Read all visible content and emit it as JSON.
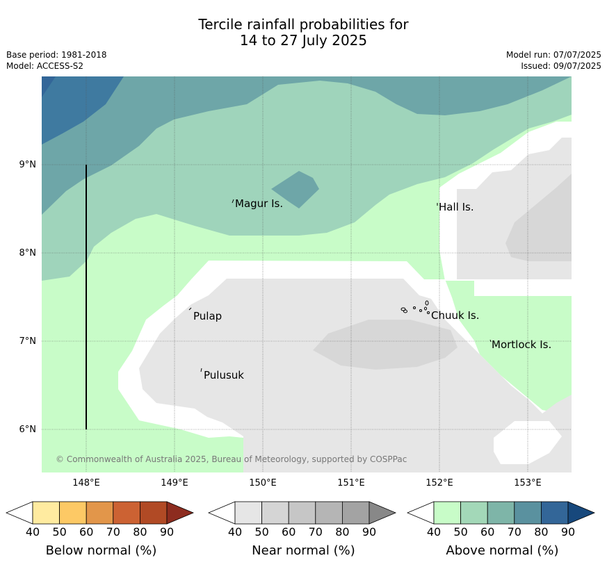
{
  "title": {
    "line1": "Tercile rainfall probabilities for",
    "line2": "14 to 27 July 2025"
  },
  "meta_left": {
    "base_period": "Base period: 1981-2018",
    "model": "Model: ACCESS-S2"
  },
  "meta_right": {
    "model_run": "Model run: 07/07/2025",
    "issued": "Issued: 09/07/2025"
  },
  "map": {
    "lon_labels": [
      "148°E",
      "149°E",
      "150°E",
      "151°E",
      "152°E",
      "153°E"
    ],
    "lat_labels": [
      "9°N",
      "8°N",
      "7°N",
      "6°N"
    ],
    "places": [
      "Magur Is.",
      "Hall Is.",
      "Pulap",
      "Chuuk Is.",
      "Mortlock Is.",
      "Pulusuk"
    ],
    "copyright": "© Commonwealth of Australia 2025, Bureau of Meteorology, supported by COSPPac",
    "colors": {
      "above_40": "#c8fcc8",
      "above_50": "#9fd4bb",
      "above_60": "#6ea6a8",
      "above_70": "#3f7aa0",
      "near_40": "#e6e6e6",
      "near_50": "#d7d7d7",
      "mask": "#ffffff"
    }
  },
  "colorbars": [
    {
      "title": "Below normal (%)",
      "ticks": [
        "40",
        "50",
        "60",
        "70",
        "80",
        "90"
      ],
      "colors": [
        "#ffeba0",
        "#fdc965",
        "#e2964a",
        "#cc6233",
        "#b14a25",
        "#8d2c1f"
      ]
    },
    {
      "title": "Near normal (%)",
      "ticks": [
        "40",
        "50",
        "60",
        "70",
        "80",
        "90"
      ],
      "colors": [
        "#e6e6e6",
        "#d5d5d5",
        "#c6c6c6",
        "#b5b5b5",
        "#a3a3a3",
        "#888888"
      ]
    },
    {
      "title": "Above normal (%)",
      "ticks": [
        "40",
        "50",
        "60",
        "70",
        "80",
        "90"
      ],
      "colors": [
        "#c8fcc8",
        "#a3d8b8",
        "#7eb5a8",
        "#5a919f",
        "#336698",
        "#17487c"
      ]
    }
  ]
}
